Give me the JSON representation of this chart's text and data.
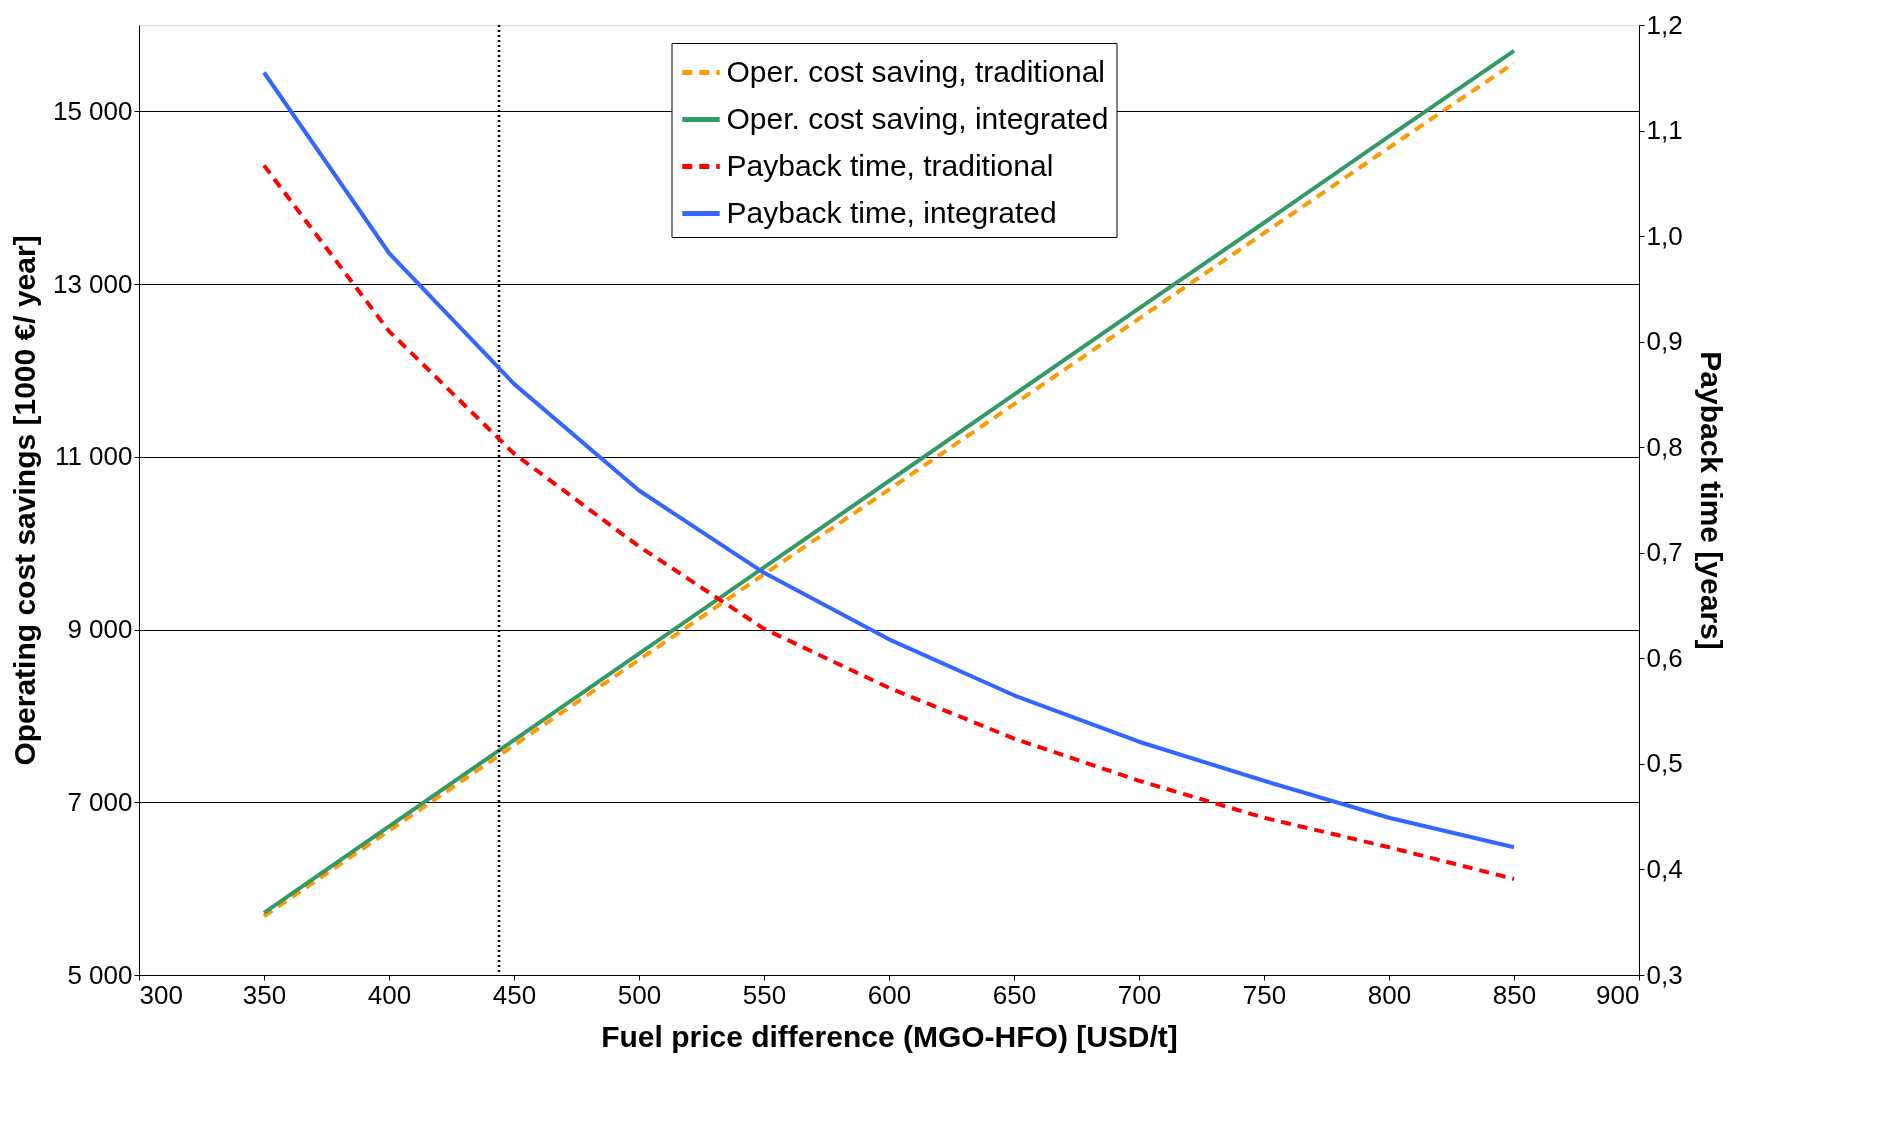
{
  "chart_data": {
    "type": "line",
    "xlabel": "Fuel price difference (MGO-HFO) [USD/t]",
    "ylabel": "Operating cost savings [1000 €/ year]",
    "y2label": "Payback time [years]",
    "x": [
      350,
      400,
      450,
      500,
      550,
      600,
      650,
      700,
      750,
      800,
      850
    ],
    "series": [
      {
        "name": "Oper. cost saving, traditional",
        "color": "#ff9900",
        "line_style": "dashed",
        "values": [
          5680,
          6670,
          7660,
          8650,
          9640,
          10620,
          11610,
          12600,
          13590,
          14580,
          15560
        ]
      },
      {
        "name": "Oper. cost saving, integrated",
        "color": "#339966",
        "line_style": "solid",
        "values": [
          5720,
          6720,
          7720,
          8720,
          9720,
          10720,
          11720,
          12720,
          13710,
          14710,
          15700
        ]
      },
      {
        "name": "Payback time, traditional",
        "color": "#ff0000",
        "line_style": "dashed",
        "axis": "y2",
        "values": [
          1.067,
          0.91,
          0.794,
          0.706,
          0.628,
          0.572,
          0.524,
          0.484,
          0.449,
          0.421,
          0.391
        ]
      },
      {
        "name": "Payback time, integrated",
        "color": "#3366ff",
        "line_style": "solid",
        "axis": "y2",
        "values": [
          1.155,
          0.984,
          0.86,
          0.759,
          0.681,
          0.618,
          0.565,
          0.521,
          0.484,
          0.449,
          0.421
        ]
      }
    ],
    "xlim": [
      300,
      900
    ],
    "xticks": [
      300,
      350,
      400,
      450,
      500,
      550,
      600,
      650,
      700,
      750,
      800,
      850,
      900
    ],
    "ylim": [
      5000,
      16000
    ],
    "yticks": [
      {
        "value": 5000,
        "label": "5 000"
      },
      {
        "value": 7000,
        "label": "7 000"
      },
      {
        "value": 9000,
        "label": "9 000"
      },
      {
        "value": 11000,
        "label": "11 000"
      },
      {
        "value": 13000,
        "label": "13 000"
      },
      {
        "value": 15000,
        "label": "15 000"
      }
    ],
    "y2lim": [
      0.3,
      1.2
    ],
    "y2ticks": [
      {
        "value": 0.3,
        "label": "0,3"
      },
      {
        "value": 0.4,
        "label": "0,4"
      },
      {
        "value": 0.5,
        "label": "0,5"
      },
      {
        "value": 0.6,
        "label": "0,6"
      },
      {
        "value": 0.7,
        "label": "0,7"
      },
      {
        "value": 0.8,
        "label": "0,8"
      },
      {
        "value": 0.9,
        "label": "0,9"
      },
      {
        "value": 1.0,
        "label": "1,0"
      },
      {
        "value": 1.1,
        "label": "1,1"
      },
      {
        "value": 1.2,
        "label": "1,2"
      }
    ],
    "ref_lines": [
      {
        "axis": "x",
        "value": 444,
        "label": null,
        "color": "#000000",
        "line_style": "dotted"
      }
    ],
    "grid": "y",
    "legend": "top"
  }
}
